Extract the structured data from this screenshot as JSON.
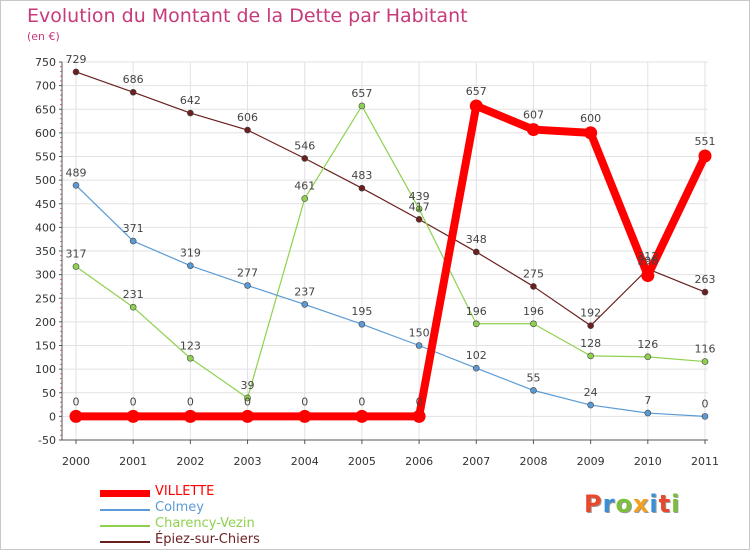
{
  "title": "Evolution du Montant de la Dette par Habitant",
  "subtitle": "(en €)",
  "logo_text": "Proxiti",
  "logo_colors": [
    "#e8492c",
    "#3a8fd6",
    "#7bbf3a",
    "#f2a020",
    "#3a8fd6",
    "#e8492c",
    "#7bbf3a"
  ],
  "chart_data": {
    "type": "line",
    "title": "Evolution du Montant de la Dette par Habitant",
    "subtitle": "(en €)",
    "x": [
      2000,
      2001,
      2002,
      2003,
      2004,
      2005,
      2006,
      2007,
      2008,
      2009,
      2010,
      2011
    ],
    "y_ticks": [
      -50,
      0,
      50,
      100,
      150,
      200,
      250,
      300,
      350,
      400,
      450,
      500,
      550,
      600,
      650,
      700,
      750
    ],
    "ylim": [
      -50,
      750
    ],
    "grid": true,
    "legend_position": "bottom-left",
    "series": [
      {
        "name": "VILLETTE",
        "color": "#ff0000",
        "values": [
          0,
          0,
          0,
          0,
          0,
          0,
          0,
          657,
          607,
          600,
          298,
          551
        ]
      },
      {
        "name": "Colmey",
        "color": "#5b9bd5",
        "values": [
          489,
          371,
          319,
          277,
          237,
          195,
          150,
          102,
          55,
          24,
          7,
          0
        ]
      },
      {
        "name": "Charency-Vezin",
        "color": "#8fd14f",
        "values": [
          317,
          231,
          123,
          39,
          461,
          657,
          439,
          196,
          196,
          128,
          126,
          116
        ]
      },
      {
        "name": "Épiez-sur-Chiers",
        "color": "#6b1f1f",
        "values": [
          729,
          686,
          642,
          606,
          546,
          483,
          417,
          348,
          275,
          192,
          312,
          263
        ]
      }
    ]
  }
}
